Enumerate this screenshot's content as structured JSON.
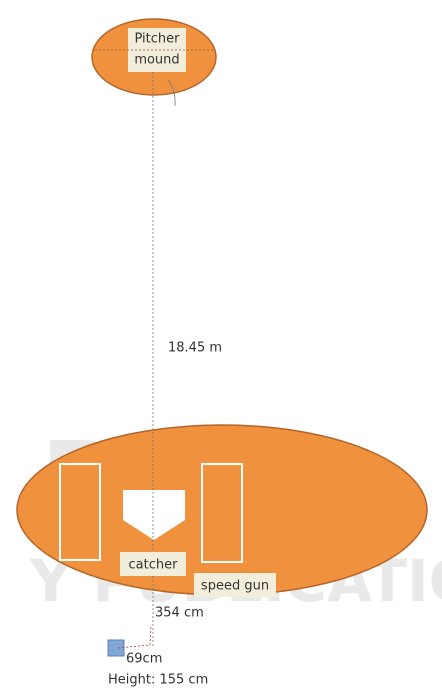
{
  "pitcher_label": [
    "Pitcher",
    "mound"
  ],
  "distance": "18.45 m",
  "catcher": "catcher",
  "speed_gun": "speed gun",
  "gun_distance": "354 cm",
  "offset": "69cm",
  "height": "Height: 155 cm",
  "watermark": [
    "RESS",
    "Y PUBLICATIONS"
  ]
}
